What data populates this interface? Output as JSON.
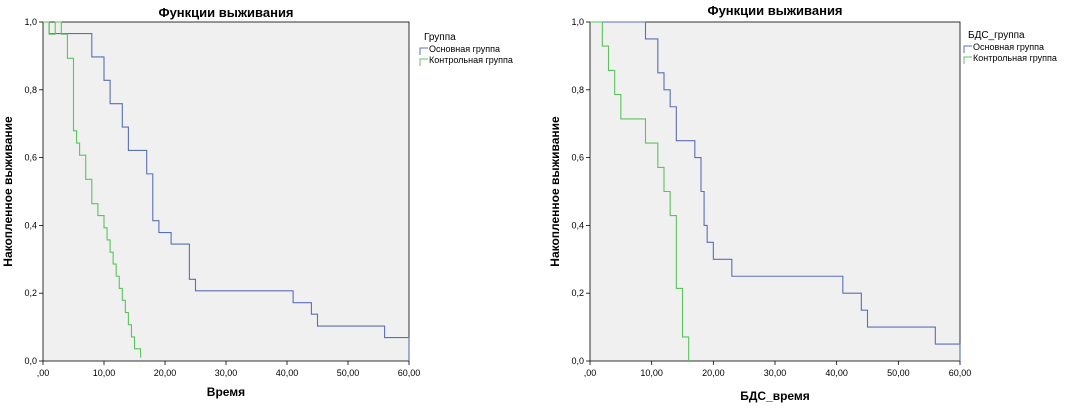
{
  "chart_data": [
    {
      "type": "line",
      "step": true,
      "title": "Функции выживания",
      "xlabel": "Время",
      "ylabel": "Накопленное выживание",
      "xlim": [
        0,
        60
      ],
      "ylim": [
        0,
        1
      ],
      "xticks": [
        ",00",
        "10,00",
        "20,00",
        "30,00",
        "40,00",
        "50,00",
        "60,00"
      ],
      "yticks": [
        "0,0",
        "0,2",
        "0,4",
        "0,6",
        "0,8",
        "1,0"
      ],
      "grid": false,
      "legend_title": "Группа",
      "legend_position": "top-right",
      "series": [
        {
          "name": "Основная группа",
          "color": "#5b6fb5",
          "x": [
            0,
            1,
            2,
            8,
            10,
            11,
            13,
            14,
            17,
            18,
            19,
            21,
            24,
            25,
            41,
            44,
            45,
            56,
            60
          ],
          "y": [
            1.0,
            0.966,
            0.966,
            0.897,
            0.828,
            0.759,
            0.69,
            0.621,
            0.552,
            0.414,
            0.379,
            0.345,
            0.241,
            0.207,
            0.172,
            0.138,
            0.103,
            0.069,
            0.034
          ],
          "end": [
            60,
            0.0
          ]
        },
        {
          "name": "Контрольная группа",
          "color": "#5cc45c",
          "x": [
            0,
            1,
            2,
            3,
            4,
            5,
            5.5,
            6,
            7,
            8,
            9,
            10,
            10.5,
            11,
            11.5,
            12,
            12.5,
            13,
            13.5,
            14,
            14.5,
            15,
            16
          ],
          "y": [
            1.0,
            0.964,
            1.0,
            0.964,
            0.893,
            0.679,
            0.643,
            0.607,
            0.536,
            0.464,
            0.429,
            0.393,
            0.357,
            0.321,
            0.286,
            0.25,
            0.214,
            0.179,
            0.143,
            0.107,
            0.071,
            0.036,
            0.01
          ],
          "end": [
            16,
            0.01
          ]
        }
      ]
    },
    {
      "type": "line",
      "step": true,
      "title": "Функции выживания",
      "xlabel": "БДС_время",
      "ylabel": "Накопленное выживание",
      "xlim": [
        0,
        60
      ],
      "ylim": [
        0,
        1
      ],
      "xticks": [
        ",00",
        "10,00",
        "20,00",
        "30,00",
        "40,00",
        "50,00",
        "60,00"
      ],
      "yticks": [
        "0,0",
        "0,2",
        "0,4",
        "0,6",
        "0,8",
        "1,0"
      ],
      "grid": false,
      "legend_title": "БДС_группа",
      "legend_position": "top-right",
      "series": [
        {
          "name": "Основная группа",
          "color": "#5b6fb5",
          "x": [
            0,
            9,
            11,
            12,
            13,
            14,
            15,
            17,
            18,
            18.5,
            19,
            20,
            23,
            41,
            44,
            45,
            56,
            60
          ],
          "y": [
            1.0,
            0.95,
            0.85,
            0.8,
            0.75,
            0.65,
            0.65,
            0.6,
            0.5,
            0.4,
            0.35,
            0.3,
            0.25,
            0.2,
            0.15,
            0.1,
            0.05,
            0.0
          ],
          "end": [
            60,
            0.0
          ]
        },
        {
          "name": "Контрольная группа",
          "color": "#5cc45c",
          "x": [
            0,
            2,
            3,
            4,
            5,
            7,
            9,
            11,
            12,
            13,
            14,
            15,
            16
          ],
          "y": [
            1.0,
            0.929,
            0.857,
            0.786,
            0.714,
            0.714,
            0.643,
            0.571,
            0.5,
            0.429,
            0.214,
            0.071,
            0.0
          ],
          "end": [
            16,
            0.0
          ]
        }
      ]
    }
  ]
}
